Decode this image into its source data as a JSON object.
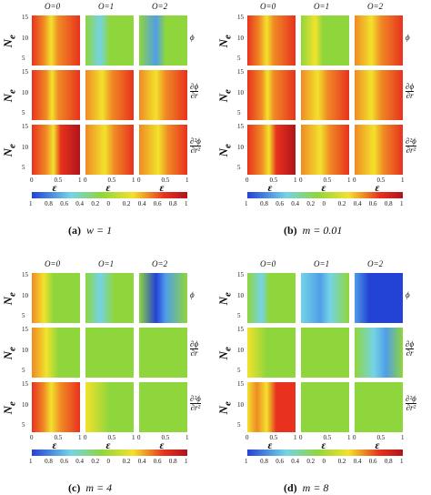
{
  "panels": [
    {
      "label": "(a)",
      "caption": "w = 1",
      "columns": [
        "O=0",
        "O=1",
        "O=2"
      ],
      "y_label": {
        "base": "N",
        "sub": "e"
      },
      "row_labels": [
        {
          "num": "ϕ"
        },
        {
          "num": "∂ϕ",
          "den": "∂r"
        },
        {
          "num": "∂²ϕ",
          "den": "∂r²"
        }
      ],
      "yticks": [
        "5",
        "10",
        "15"
      ],
      "xticks": [
        "0",
        "0.5",
        "1"
      ],
      "x_label": "ε",
      "colorbar_ticks": [
        "1",
        "0.8",
        "0.6",
        "0.4",
        "0.2",
        "0",
        "0.2",
        "0.4",
        "0.6",
        "0.8",
        "1"
      ]
    },
    {
      "label": "(b)",
      "caption": "m = 0.01",
      "columns": [
        "O=0",
        "O=1",
        "O=2"
      ],
      "y_label": {
        "base": "N",
        "sub": "e"
      },
      "row_labels": [
        {
          "num": "ϕ"
        },
        {
          "num": "∂ϕ",
          "den": "∂r"
        },
        {
          "num": "∂²ϕ",
          "den": "∂r²"
        }
      ],
      "yticks": [
        "5",
        "10",
        "15"
      ],
      "xticks": [
        "0",
        "0.5",
        "1"
      ],
      "x_label": "ε",
      "colorbar_ticks": [
        "1",
        "0.8",
        "0.6",
        "0.4",
        "0.2",
        "0",
        "0.2",
        "0.4",
        "0.6",
        "0.8",
        "1"
      ]
    },
    {
      "label": "(c)",
      "caption": "m = 4",
      "columns": [
        "O=0",
        "O=1",
        "O=2"
      ],
      "y_label": {
        "base": "N",
        "sub": "e"
      },
      "row_labels": [
        {
          "num": "ϕ"
        },
        {
          "num": "∂ϕ",
          "den": "∂r"
        },
        {
          "num": "∂²ϕ",
          "den": "∂r²"
        }
      ],
      "yticks": [
        "5",
        "10",
        "15"
      ],
      "xticks": [
        "0",
        "0.5",
        "1"
      ],
      "x_label": "ε",
      "colorbar_ticks": [
        "1",
        "0.8",
        "0.6",
        "0.4",
        "0.2",
        "0",
        "0.2",
        "0.4",
        "0.6",
        "0.8",
        "1"
      ]
    },
    {
      "label": "(d)",
      "caption": "m = 8",
      "columns": [
        "O=0",
        "O=1",
        "O=2"
      ],
      "y_label": {
        "base": "N",
        "sub": "e"
      },
      "row_labels": [
        {
          "num": "ϕ"
        },
        {
          "num": "∂ϕ",
          "den": "∂r"
        },
        {
          "num": "∂²ϕ",
          "den": "∂r²"
        }
      ],
      "yticks": [
        "5",
        "10",
        "15"
      ],
      "xticks": [
        "0",
        "0.5",
        "1"
      ],
      "x_label": "ε",
      "colorbar_ticks": [
        "1",
        "0.8",
        "0.6",
        "0.4",
        "0.2",
        "0",
        "0.2",
        "0.4",
        "0.6",
        "0.8",
        "1"
      ]
    }
  ]
}
